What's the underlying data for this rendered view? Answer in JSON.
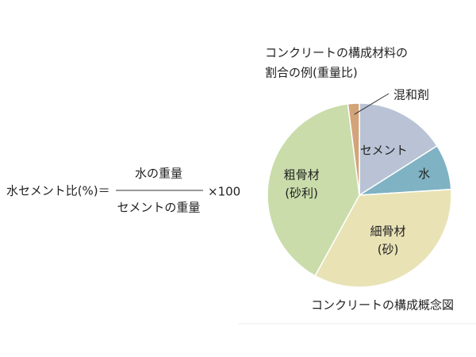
{
  "chart_data": {
    "type": "pie",
    "title": "コンクリートの構成材料の",
    "subtitle": "割合の例(重量比)",
    "caption": "コンクリートの構成概念図",
    "categories": [
      "セメント",
      "水",
      "細骨材",
      "粗骨材",
      "混和剤"
    ],
    "category_notes": [
      null,
      null,
      "(砂)",
      "(砂利)",
      null
    ],
    "values": [
      16,
      8,
      34,
      40,
      2
    ],
    "colors": [
      "#b9c3d5",
      "#7fb2c3",
      "#e9e2b5",
      "#c9dcaa",
      "#d3a47a"
    ]
  },
  "formula": {
    "lhs": "水セメント比(%)＝",
    "numerator": "水の重量",
    "denominator": "セメントの重量",
    "multiplier": "×100"
  }
}
